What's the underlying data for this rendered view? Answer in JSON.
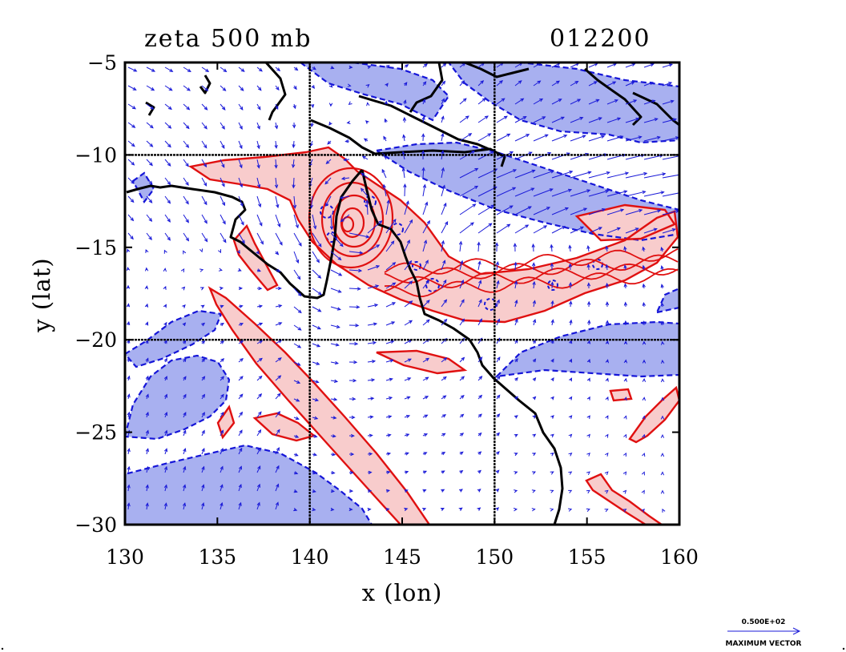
{
  "chart_data": {
    "type": "map",
    "title_left": "zeta 500 mb",
    "title_right": "012200",
    "xlabel": "x (lon)",
    "ylabel": "y (lat)",
    "xlim": [
      130,
      160
    ],
    "ylim": [
      -30,
      -5
    ],
    "x_ticks": [
      "130",
      "135",
      "140",
      "145",
      "150",
      "155",
      "160"
    ],
    "y_ticks": [
      "-5",
      "-10",
      "-15",
      "-20",
      "-25",
      "-30"
    ],
    "gridlines_lon": [
      140,
      150
    ],
    "gridlines_lat": [
      -10,
      -20
    ],
    "colors": {
      "positive_fill": "#f8cccc",
      "positive_contour": "#e01010",
      "negative_fill": "#a8b0f0",
      "negative_contour": "#1515d8",
      "vectors": "#1a1ad8",
      "coastline": "#000000"
    },
    "vector_key": {
      "value": "0.500E+02",
      "label": "MAXIMUM VECTOR"
    }
  }
}
